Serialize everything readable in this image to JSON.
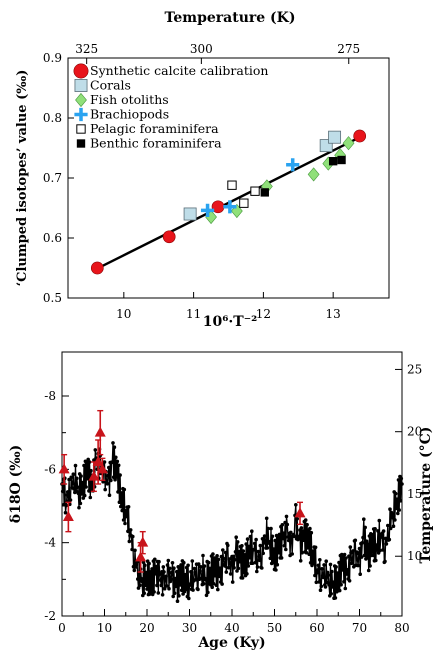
{
  "chart_data": [
    {
      "type": "scatter",
      "xlabel": "10⁶·T⁻²",
      "ylabel": "‘Clumped isotopes’ value (‰)",
      "top_axis_label": "Temperature (K)",
      "top_ticks": [
        325,
        300,
        275
      ],
      "xlim": [
        9.2,
        13.8
      ],
      "ylim": [
        0.5,
        0.9
      ],
      "xticks": [
        10,
        11,
        12,
        13
      ],
      "yticks": [
        0.5,
        0.6,
        0.7,
        0.8,
        0.9
      ],
      "legend_position": "top-left",
      "fit_line": {
        "x": [
          9.6,
          13.45
        ],
        "y": [
          0.548,
          0.772
        ],
        "color": "#000000"
      },
      "series": [
        {
          "name": "Synthetic calcite calibration",
          "marker": "circle",
          "color": "#e8141b",
          "points": [
            [
              9.62,
              0.55
            ],
            [
              10.65,
              0.602
            ],
            [
              11.35,
              0.652
            ],
            [
              13.38,
              0.77
            ]
          ]
        },
        {
          "name": "Corals",
          "marker": "square",
          "color": "#bfdde8",
          "points": [
            [
              10.95,
              0.64
            ],
            [
              12.9,
              0.754
            ],
            [
              13.02,
              0.768
            ]
          ]
        },
        {
          "name": "Fish otoliths",
          "marker": "diamond",
          "color": "#90e07a",
          "points": [
            [
              11.25,
              0.635
            ],
            [
              11.62,
              0.645
            ],
            [
              12.05,
              0.686
            ],
            [
              12.72,
              0.706
            ],
            [
              12.93,
              0.724
            ],
            [
              13.1,
              0.738
            ],
            [
              13.22,
              0.758
            ]
          ]
        },
        {
          "name": "Brachiopods",
          "marker": "plus",
          "color": "#2aa3f0",
          "points": [
            [
              11.2,
              0.646
            ],
            [
              11.52,
              0.652
            ],
            [
              12.42,
              0.722
            ]
          ]
        },
        {
          "name": "Pelagic foraminifera",
          "marker": "open-square",
          "color": "#000000",
          "points": [
            [
              11.55,
              0.688
            ],
            [
              11.72,
              0.658
            ],
            [
              11.88,
              0.678
            ]
          ]
        },
        {
          "name": "Benthic foraminifera",
          "marker": "filled-square",
          "color": "#000000",
          "points": [
            [
              12.02,
              0.676
            ],
            [
              13.0,
              0.728
            ],
            [
              13.12,
              0.73
            ]
          ]
        }
      ]
    },
    {
      "type": "line",
      "xlabel": "Age (Ky)",
      "ylabel": "δ18O (‰)",
      "y2label": "Temperature (°C)",
      "xlim": [
        0,
        80
      ],
      "xticks": [
        0,
        10,
        20,
        30,
        40,
        50,
        60,
        70,
        80
      ],
      "ylim": [
        -2,
        -9.2
      ],
      "y_inverted": true,
      "yticks": [
        -2,
        -4,
        -6,
        -8
      ],
      "y2lim": [
        5.2,
        26.4
      ],
      "y2ticks": [
        10,
        15,
        20,
        25
      ],
      "line_color": "#000000",
      "series": [
        {
          "name": "",
          "x": [
            0,
            1,
            2,
            3,
            4,
            5,
            6,
            7,
            8,
            9,
            10,
            11,
            12,
            13,
            14,
            15,
            16,
            17,
            18,
            19,
            20,
            21,
            22,
            23,
            24,
            25,
            26,
            27,
            28,
            29,
            30,
            31,
            32,
            33,
            34,
            35,
            36,
            37,
            38,
            39,
            40,
            41,
            42,
            43,
            44,
            45,
            46,
            47,
            48,
            49,
            50,
            51,
            52,
            53,
            54,
            55,
            56,
            57,
            58,
            59,
            60,
            61,
            62,
            63,
            64,
            65,
            66,
            67,
            68,
            69,
            70,
            71,
            72,
            73,
            74,
            75,
            76,
            77,
            78,
            79,
            80
          ],
          "y": [
            -5.6,
            -5.2,
            -5.5,
            -5.8,
            -5.4,
            -5.6,
            -6.0,
            -5.5,
            -6.2,
            -6.1,
            -5.8,
            -5.6,
            -6.3,
            -5.9,
            -5.2,
            -4.9,
            -4.4,
            -3.6,
            -3.2,
            -3.0,
            -3.1,
            -2.9,
            -3.2,
            -3.0,
            -2.9,
            -3.1,
            -3.0,
            -2.8,
            -3.1,
            -3.0,
            -2.9,
            -3.2,
            -3.1,
            -3.3,
            -3.0,
            -3.2,
            -3.3,
            -3.1,
            -3.4,
            -3.6,
            -3.2,
            -3.7,
            -3.5,
            -3.4,
            -3.8,
            -3.9,
            -3.6,
            -3.7,
            -4.3,
            -4.0,
            -3.6,
            -3.9,
            -4.1,
            -4.3,
            -3.8,
            -4.6,
            -3.9,
            -4.2,
            -4.1,
            -3.7,
            -3.3,
            -3.1,
            -3.2,
            -3.0,
            -2.9,
            -3.0,
            -3.4,
            -3.1,
            -3.5,
            -3.7,
            -3.4,
            -4.2,
            -3.6,
            -4.0,
            -3.9,
            -4.3,
            -3.8,
            -4.5,
            -4.9,
            -5.2,
            -5.6
          ]
        },
        {
          "name": "",
          "marker": "triangle",
          "color": "#c8141b",
          "points": [
            [
              0.5,
              -6.0,
              0.4
            ],
            [
              1.5,
              -4.7,
              0.4
            ],
            [
              7.5,
              -5.8,
              0.4
            ],
            [
              8.5,
              -6.2,
              0.6
            ],
            [
              9.0,
              -7.0,
              0.6
            ],
            [
              9.5,
              -6.0,
              0.3
            ],
            [
              18.5,
              -3.6,
              0.4
            ],
            [
              19.0,
              -4.0,
              0.3
            ],
            [
              56.0,
              -4.8,
              0.3
            ]
          ]
        }
      ]
    }
  ]
}
